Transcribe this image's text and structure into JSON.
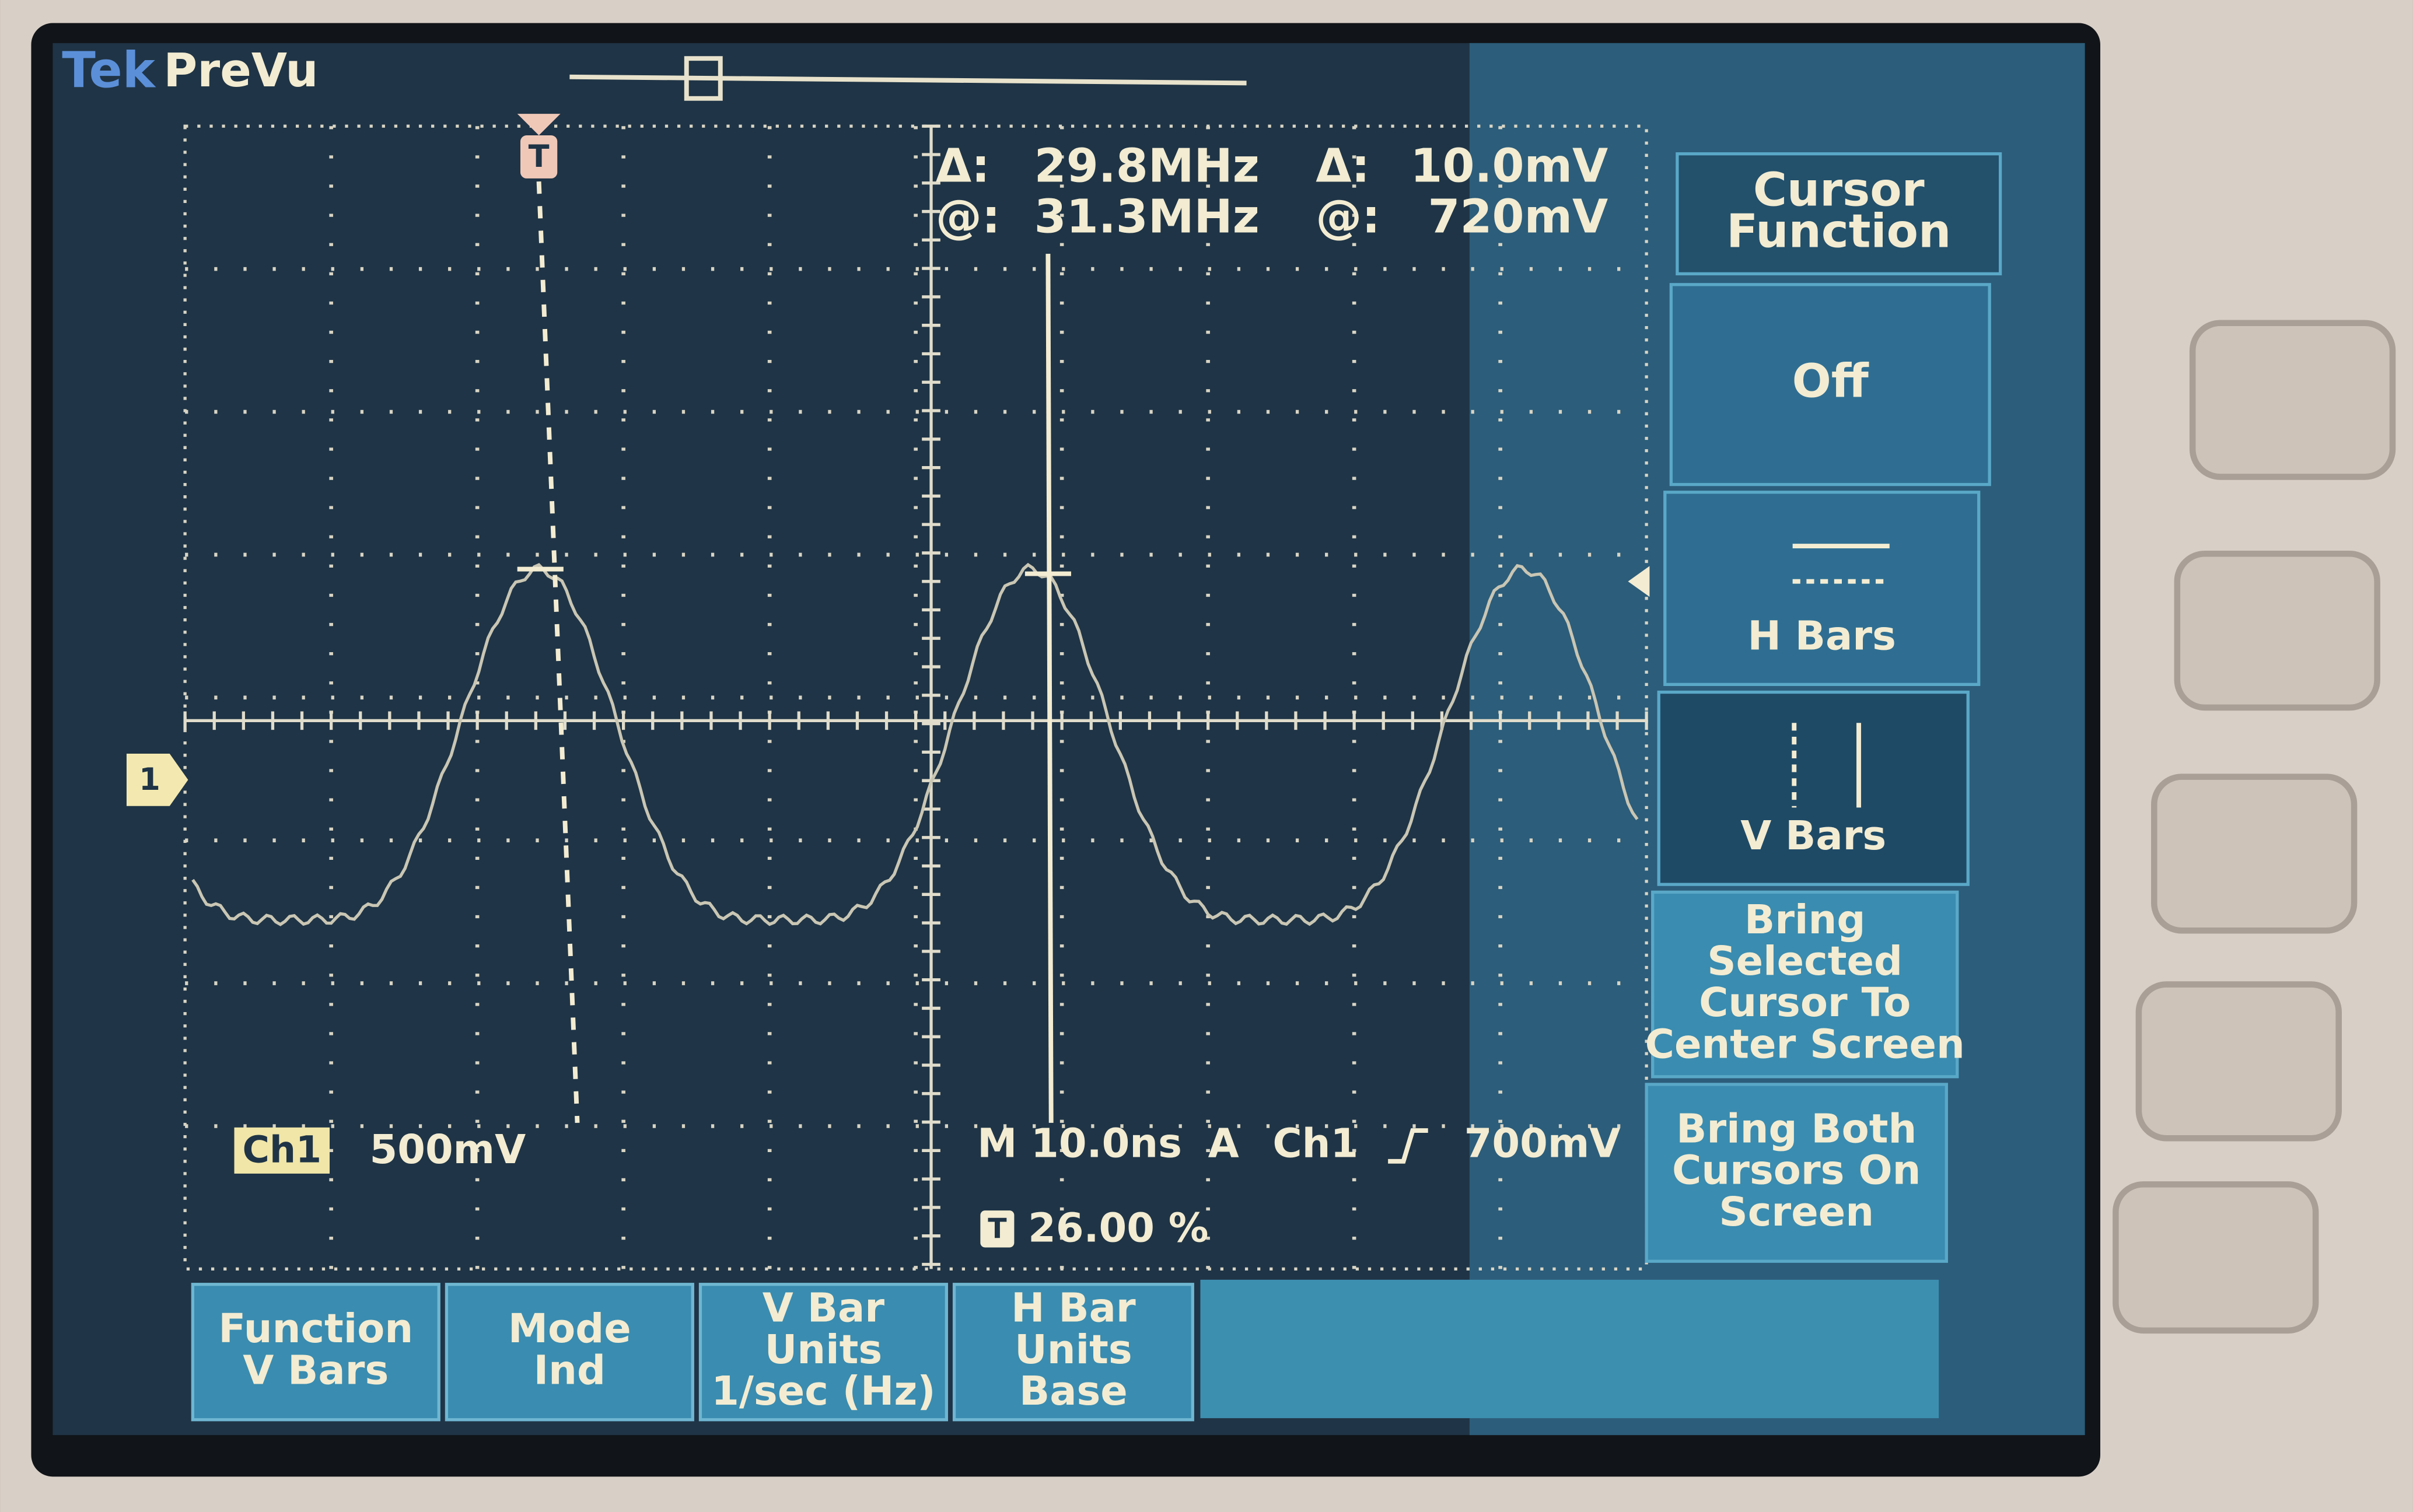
{
  "header": {
    "brand": "Tek",
    "mode": "PreVu"
  },
  "readout": [
    {
      "label": "Δ:",
      "freq": "29.8MHz",
      "label2": "Δ:",
      "volt": "10.0mV"
    },
    {
      "label": "@:",
      "freq": "31.3MHz",
      "label2": "@:",
      "volt": "720mV"
    }
  ],
  "side_menu": [
    {
      "lines": [
        "Cursor",
        "Function"
      ]
    },
    {
      "lines": [
        "Off"
      ]
    },
    {
      "lines": [
        "H Bars"
      ]
    },
    {
      "lines": [
        "V Bars"
      ]
    },
    {
      "lines": [
        "Bring",
        "Selected",
        "Cursor To",
        "Center Screen"
      ]
    },
    {
      "lines": [
        "Bring Both",
        "Cursors On",
        "Screen"
      ]
    }
  ],
  "bottom_menu": [
    {
      "lines": [
        "Function",
        "V Bars"
      ]
    },
    {
      "lines": [
        "Mode",
        "Ind"
      ]
    },
    {
      "lines": [
        "V Bar",
        "Units",
        "1/sec (Hz)"
      ]
    },
    {
      "lines": [
        "H Bar",
        "Units",
        "Base"
      ]
    }
  ],
  "status": {
    "channel": "Ch1",
    "scale": "500mV",
    "timebase": "M 10.0ns",
    "trigger_source": "A",
    "trigger_channel": "Ch1",
    "trigger_level": "700mV",
    "trigger_position": "26.00 %"
  },
  "markers": {
    "channel": "1",
    "trigger": "T",
    "position_icon": "T"
  }
}
